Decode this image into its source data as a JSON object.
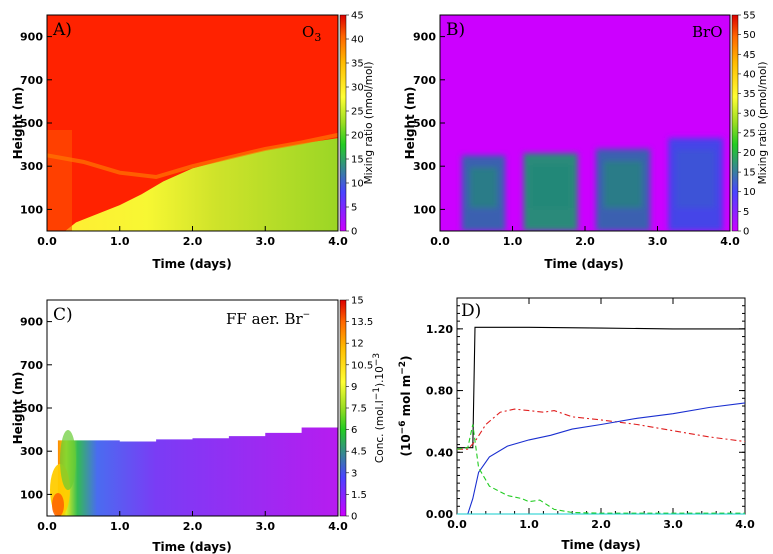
{
  "chart_data": [
    {
      "type": "heatmap",
      "panel_label": "A)",
      "species": "O",
      "species_sub": "3",
      "xlabel": "Time (days)",
      "ylabel": "Height (m)",
      "xlim": [
        0,
        4.0
      ],
      "ylim": [
        0,
        1000
      ],
      "xticks": [
        "0.0",
        "1.0",
        "2.0",
        "3.0",
        "4.0"
      ],
      "yticks": [
        "100",
        "300",
        "500",
        "700",
        "900"
      ],
      "colorbar": {
        "label": "Mixing ratio (nmol/mol)",
        "range": [
          0,
          45
        ],
        "ticks": [
          "0",
          "5",
          "10",
          "15",
          "20",
          "25",
          "30",
          "35",
          "40",
          "45"
        ]
      },
      "boundary_layer_top_m": [
        [
          0,
          350
        ],
        [
          0.5,
          320
        ],
        [
          1.0,
          270
        ],
        [
          1.5,
          250
        ],
        [
          2.0,
          300
        ],
        [
          2.5,
          340
        ],
        [
          3.0,
          380
        ],
        [
          3.5,
          410
        ],
        [
          4.0,
          445
        ]
      ],
      "inside_values_nmol_mol": {
        "early": 37,
        "day1": 28,
        "day4": 18
      },
      "above_value_nmol_mol": 41
    },
    {
      "type": "heatmap",
      "panel_label": "B)",
      "species": "BrO",
      "xlabel": "Time (days)",
      "ylabel": "Height (m)",
      "xlim": [
        0,
        4.0
      ],
      "ylim": [
        0,
        1000
      ],
      "xticks": [
        "0.0",
        "1.0",
        "2.0",
        "3.0",
        "4.0"
      ],
      "yticks": [
        "100",
        "300",
        "500",
        "700",
        "900"
      ],
      "colorbar": {
        "label": "Mixing ratio (pmol/mol)",
        "range": [
          0,
          55
        ],
        "ticks": [
          "0",
          "5",
          "10",
          "15",
          "20",
          "25",
          "30",
          "35",
          "40",
          "45",
          "50",
          "55"
        ]
      },
      "daytime_blocks": [
        {
          "t0": 0.3,
          "t1": 0.9,
          "top_m": 350,
          "value_pmol_mol": 13
        },
        {
          "t0": 1.15,
          "t1": 1.9,
          "top_m": 360,
          "value_pmol_mol": 15
        },
        {
          "t0": 2.15,
          "t1": 2.9,
          "top_m": 380,
          "value_pmol_mol": 11
        },
        {
          "t0": 3.15,
          "t1": 3.9,
          "top_m": 430,
          "value_pmol_mol": 8
        }
      ],
      "background_value_pmol_mol": 0
    },
    {
      "type": "heatmap",
      "panel_label": "C)",
      "species": "FF aer. Br",
      "species_sup": "−",
      "xlabel": "Time (days)",
      "ylabel": "Height (m)",
      "xlim": [
        0,
        4.0
      ],
      "ylim": [
        0,
        1000
      ],
      "xticks": [
        "0.0",
        "1.0",
        "2.0",
        "3.0",
        "4.0"
      ],
      "yticks": [
        "100",
        "300",
        "500",
        "700",
        "900"
      ],
      "colorbar": {
        "label": "Conc. (mol.l",
        "label_sup1": "−1",
        "label_mid": ").10",
        "label_sup2": "−3",
        "range": [
          0,
          15
        ],
        "ticks": [
          "0",
          "1.5",
          "3",
          "4.5",
          "6",
          "7.5",
          "9",
          "10.5",
          "12",
          "13.5",
          "15"
        ]
      },
      "domain_top_m": [
        [
          0.15,
          350
        ],
        [
          1.0,
          345
        ],
        [
          1.5,
          355
        ],
        [
          2.0,
          360
        ],
        [
          2.5,
          370
        ],
        [
          3.0,
          385
        ],
        [
          3.5,
          410
        ],
        [
          4.0,
          445
        ]
      ],
      "max_value": 15
    },
    {
      "type": "line",
      "panel_label": "D)",
      "xlabel": "Time (days)",
      "ylabel": "(10",
      "ylabel_sup1": "−6",
      "ylabel_mid": " mol m",
      "ylabel_sup2": "−2",
      "ylabel_end": ")",
      "xlim": [
        0,
        4.0
      ],
      "ylim": [
        0,
        1.4
      ],
      "xticks": [
        "0.0",
        "1.0",
        "2.0",
        "3.0",
        "4.0"
      ],
      "yticks": [
        "0.00",
        "0.40",
        "0.80",
        "1.20"
      ],
      "series": [
        {
          "color": "#000000",
          "dash": "",
          "points": [
            [
              0.0,
              0.43
            ],
            [
              0.22,
              0.43
            ],
            [
              0.25,
              1.21
            ],
            [
              1.0,
              1.21
            ],
            [
              2.0,
              1.205
            ],
            [
              3.0,
              1.2
            ],
            [
              4.0,
              1.2
            ]
          ]
        },
        {
          "color": "#e02020",
          "dash": "6,3,2,3",
          "points": [
            [
              0.0,
              0.42
            ],
            [
              0.15,
              0.42
            ],
            [
              0.25,
              0.47
            ],
            [
              0.4,
              0.58
            ],
            [
              0.6,
              0.66
            ],
            [
              0.8,
              0.68
            ],
            [
              1.0,
              0.67
            ],
            [
              1.2,
              0.66
            ],
            [
              1.35,
              0.67
            ],
            [
              1.6,
              0.63
            ],
            [
              2.0,
              0.61
            ],
            [
              2.5,
              0.58
            ],
            [
              3.0,
              0.54
            ],
            [
              3.5,
              0.5
            ],
            [
              4.0,
              0.47
            ]
          ]
        },
        {
          "color": "#1a2fd0",
          "dash": "",
          "points": [
            [
              0.15,
              0.0
            ],
            [
              0.22,
              0.1
            ],
            [
              0.3,
              0.27
            ],
            [
              0.45,
              0.37
            ],
            [
              0.7,
              0.44
            ],
            [
              1.0,
              0.48
            ],
            [
              1.3,
              0.51
            ],
            [
              1.6,
              0.55
            ],
            [
              2.0,
              0.58
            ],
            [
              2.5,
              0.62
            ],
            [
              3.0,
              0.65
            ],
            [
              3.5,
              0.69
            ],
            [
              4.0,
              0.72
            ]
          ]
        },
        {
          "color": "#22cc22",
          "dash": "5,3",
          "points": [
            [
              0.0,
              0.42
            ],
            [
              0.15,
              0.43
            ],
            [
              0.22,
              0.58
            ],
            [
              0.3,
              0.3
            ],
            [
              0.45,
              0.18
            ],
            [
              0.7,
              0.12
            ],
            [
              0.9,
              0.1
            ],
            [
              1.0,
              0.08
            ],
            [
              1.15,
              0.09
            ],
            [
              1.35,
              0.03
            ],
            [
              1.6,
              0.01
            ],
            [
              2.0,
              0.005
            ],
            [
              3.0,
              0.005
            ],
            [
              4.0,
              0.005
            ]
          ]
        },
        {
          "color": "#11cccc",
          "dash": "",
          "points": [
            [
              0.0,
              0.0
            ],
            [
              4.0,
              0.0
            ]
          ]
        }
      ]
    }
  ]
}
